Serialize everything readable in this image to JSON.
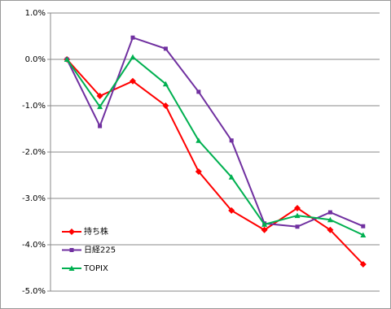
{
  "chart_data": {
    "type": "line",
    "categories": [
      null,
      null,
      null,
      null,
      null,
      null,
      null,
      null,
      null,
      null
    ],
    "series": [
      {
        "name": "持ち株",
        "color": "#ff0000",
        "marker": "diamond",
        "values": [
          0,
          -0.79,
          -0.47,
          -1.0,
          -2.42,
          -3.26,
          -3.68,
          -3.21,
          -3.68,
          -4.42
        ]
      },
      {
        "name": "日経225",
        "color": "#7030a0",
        "marker": "square",
        "values": [
          0,
          -1.44,
          0.47,
          0.23,
          -0.7,
          -1.75,
          -3.54,
          -3.61,
          -3.3,
          -3.6
        ]
      },
      {
        "name": "TOPIX",
        "color": "#00b050",
        "marker": "triangle",
        "values": [
          0,
          -1.02,
          0.05,
          -0.53,
          -1.75,
          -2.54,
          -3.56,
          -3.37,
          -3.46,
          -3.79
        ]
      }
    ],
    "ylim": [
      -5,
      1
    ],
    "yticks": [
      {
        "value": -5,
        "label": "-5.0%"
      },
      {
        "value": -4,
        "label": "-4.0%"
      },
      {
        "value": -3,
        "label": "-3.0%"
      },
      {
        "value": -2,
        "label": "-2.0%"
      },
      {
        "value": -1,
        "label": "-1.0%"
      },
      {
        "value": 0,
        "label": "0.0%"
      },
      {
        "value": 1,
        "label": "1.0%"
      }
    ],
    "grid": true,
    "legend": "lower-left"
  }
}
